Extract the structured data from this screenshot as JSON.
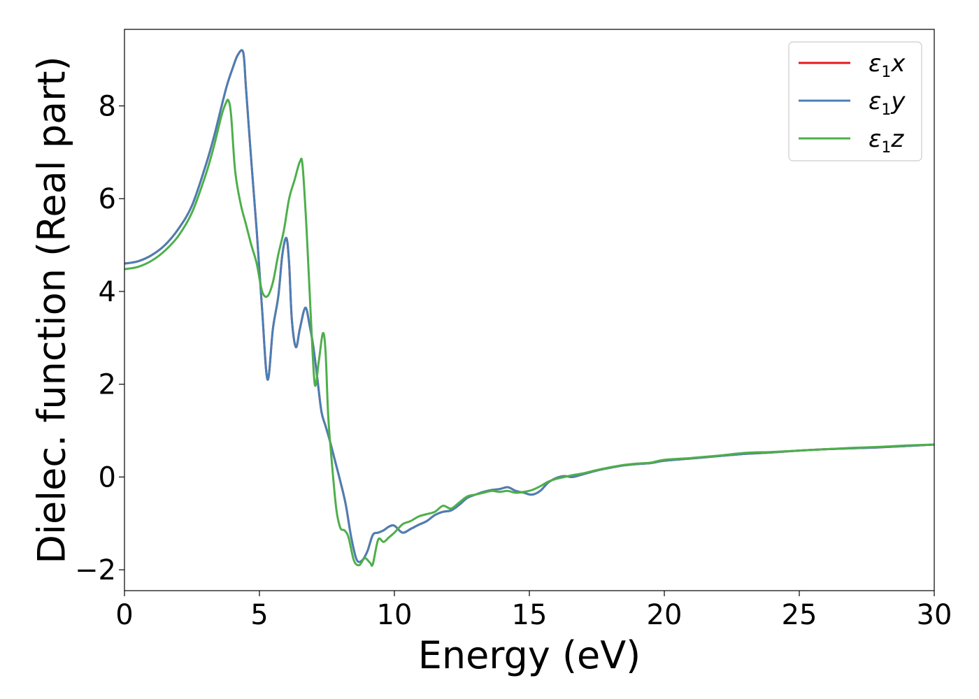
{
  "chart_data": {
    "type": "line",
    "xlabel": "Energy (eV)",
    "ylabel": "Dielec. function (Real part)",
    "xlim": [
      0,
      30
    ],
    "ylim": [
      -2.45,
      9.65
    ],
    "xticks": [
      0,
      5,
      10,
      15,
      20,
      25,
      30
    ],
    "xtick_labels": [
      "0",
      "5",
      "10",
      "15",
      "20",
      "25",
      "30"
    ],
    "yticks": [
      -2,
      0,
      2,
      4,
      6,
      8
    ],
    "ytick_labels": [
      "−2",
      "0",
      "2",
      "4",
      "6",
      "8"
    ],
    "grid": false,
    "legend_position": "top-right",
    "series": [
      {
        "name": "ε₁x",
        "legend_base": "ε",
        "legend_sub": "1",
        "legend_var": "x",
        "color": "#e41a1c",
        "x": [
          0,
          0.5,
          1,
          1.5,
          2,
          2.5,
          3,
          3.3,
          3.6,
          3.8,
          4.0,
          4.2,
          4.4,
          4.5,
          4.7,
          4.9,
          5.1,
          5.3,
          5.5,
          5.7,
          5.85,
          6.0,
          6.1,
          6.2,
          6.35,
          6.5,
          6.7,
          6.85,
          7.0,
          7.15,
          7.3,
          7.45,
          7.6,
          7.8,
          8.0,
          8.2,
          8.4,
          8.6,
          8.8,
          9.0,
          9.2,
          9.4,
          9.6,
          9.8,
          10.0,
          10.3,
          10.6,
          10.9,
          11.2,
          11.5,
          11.8,
          12.1,
          12.4,
          12.7,
          13.0,
          13.3,
          13.6,
          13.9,
          14.2,
          14.5,
          14.8,
          15.1,
          15.4,
          15.7,
          16.0,
          16.3,
          16.6,
          17.0,
          17.5,
          18.0,
          18.5,
          19.0,
          19.5,
          20.0,
          21.0,
          22.0,
          23.0,
          24.0,
          25.0,
          26.0,
          27.0,
          28.0,
          29.0,
          30.0
        ],
        "values": [
          4.6,
          4.65,
          4.78,
          5.0,
          5.35,
          5.85,
          6.7,
          7.3,
          8.0,
          8.45,
          8.8,
          9.1,
          9.15,
          8.4,
          6.8,
          5.3,
          3.6,
          2.1,
          3.2,
          3.9,
          4.8,
          5.15,
          4.6,
          3.4,
          2.8,
          3.2,
          3.65,
          3.3,
          2.8,
          2.1,
          1.4,
          1.1,
          0.8,
          0.35,
          -0.1,
          -0.6,
          -1.3,
          -1.78,
          -1.8,
          -1.6,
          -1.25,
          -1.2,
          -1.15,
          -1.07,
          -1.05,
          -1.2,
          -1.12,
          -1.03,
          -0.95,
          -0.82,
          -0.75,
          -0.72,
          -0.6,
          -0.45,
          -0.38,
          -0.32,
          -0.28,
          -0.26,
          -0.22,
          -0.3,
          -0.34,
          -0.38,
          -0.3,
          -0.12,
          -0.02,
          0.02,
          0.0,
          0.06,
          0.14,
          0.2,
          0.25,
          0.28,
          0.3,
          0.35,
          0.4,
          0.45,
          0.5,
          0.53,
          0.57,
          0.6,
          0.62,
          0.64,
          0.67,
          0.7
        ]
      },
      {
        "name": "ε₁y",
        "legend_base": "ε",
        "legend_sub": "1",
        "legend_var": "y",
        "color": "#4a7fb5",
        "x": [
          0,
          0.5,
          1,
          1.5,
          2,
          2.5,
          3,
          3.3,
          3.6,
          3.8,
          4.0,
          4.2,
          4.4,
          4.5,
          4.7,
          4.9,
          5.1,
          5.3,
          5.5,
          5.7,
          5.85,
          6.0,
          6.1,
          6.2,
          6.35,
          6.5,
          6.7,
          6.85,
          7.0,
          7.15,
          7.3,
          7.45,
          7.6,
          7.8,
          8.0,
          8.2,
          8.4,
          8.6,
          8.8,
          9.0,
          9.2,
          9.4,
          9.6,
          9.8,
          10.0,
          10.3,
          10.6,
          10.9,
          11.2,
          11.5,
          11.8,
          12.1,
          12.4,
          12.7,
          13.0,
          13.3,
          13.6,
          13.9,
          14.2,
          14.5,
          14.8,
          15.1,
          15.4,
          15.7,
          16.0,
          16.3,
          16.6,
          17.0,
          17.5,
          18.0,
          18.5,
          19.0,
          19.5,
          20.0,
          21.0,
          22.0,
          23.0,
          24.0,
          25.0,
          26.0,
          27.0,
          28.0,
          29.0,
          30.0
        ],
        "values": [
          4.6,
          4.65,
          4.78,
          5.0,
          5.35,
          5.85,
          6.7,
          7.3,
          8.0,
          8.45,
          8.8,
          9.1,
          9.15,
          8.4,
          6.8,
          5.3,
          3.6,
          2.1,
          3.2,
          3.9,
          4.8,
          5.15,
          4.6,
          3.4,
          2.8,
          3.2,
          3.65,
          3.3,
          2.8,
          2.1,
          1.4,
          1.1,
          0.8,
          0.35,
          -0.1,
          -0.6,
          -1.3,
          -1.78,
          -1.8,
          -1.6,
          -1.25,
          -1.2,
          -1.15,
          -1.07,
          -1.05,
          -1.2,
          -1.12,
          -1.03,
          -0.95,
          -0.82,
          -0.75,
          -0.72,
          -0.6,
          -0.45,
          -0.38,
          -0.32,
          -0.28,
          -0.26,
          -0.22,
          -0.3,
          -0.34,
          -0.38,
          -0.3,
          -0.12,
          -0.02,
          0.02,
          0.0,
          0.06,
          0.14,
          0.2,
          0.25,
          0.28,
          0.3,
          0.35,
          0.4,
          0.45,
          0.5,
          0.53,
          0.57,
          0.6,
          0.62,
          0.64,
          0.67,
          0.7
        ]
      },
      {
        "name": "ε₁z",
        "legend_base": "ε",
        "legend_sub": "1",
        "legend_var": "z",
        "color": "#4daf4a",
        "x": [
          0,
          0.5,
          1,
          1.5,
          2,
          2.5,
          3,
          3.3,
          3.6,
          3.75,
          3.85,
          3.95,
          4.1,
          4.3,
          4.5,
          4.7,
          4.9,
          5.1,
          5.3,
          5.5,
          5.7,
          5.9,
          6.1,
          6.3,
          6.5,
          6.6,
          6.75,
          6.9,
          7.05,
          7.2,
          7.35,
          7.45,
          7.55,
          7.7,
          7.85,
          8.0,
          8.15,
          8.3,
          8.5,
          8.7,
          8.9,
          9.1,
          9.2,
          9.4,
          9.6,
          9.8,
          10.0,
          10.3,
          10.6,
          10.9,
          11.2,
          11.5,
          11.8,
          12.1,
          12.4,
          12.7,
          13.0,
          13.3,
          13.6,
          13.9,
          14.2,
          14.5,
          14.8,
          15.1,
          15.4,
          15.7,
          16.0,
          16.3,
          16.6,
          17.0,
          17.5,
          18.0,
          18.5,
          19.0,
          19.5,
          20.0,
          21.0,
          22.0,
          23.0,
          24.0,
          25.0,
          26.0,
          27.0,
          28.0,
          29.0,
          30.0
        ],
        "values": [
          4.48,
          4.53,
          4.66,
          4.88,
          5.2,
          5.7,
          6.5,
          7.1,
          7.8,
          8.05,
          8.12,
          7.8,
          6.6,
          5.9,
          5.45,
          5.0,
          4.6,
          4.0,
          3.9,
          4.2,
          4.8,
          5.3,
          6.0,
          6.4,
          6.8,
          6.7,
          5.3,
          3.5,
          2.0,
          2.5,
          3.1,
          2.7,
          1.3,
          0.2,
          -0.7,
          -1.1,
          -1.15,
          -1.3,
          -1.8,
          -1.9,
          -1.75,
          -1.85,
          -1.88,
          -1.35,
          -1.4,
          -1.3,
          -1.2,
          -1.02,
          -0.95,
          -0.85,
          -0.8,
          -0.75,
          -0.62,
          -0.68,
          -0.55,
          -0.42,
          -0.38,
          -0.34,
          -0.3,
          -0.32,
          -0.3,
          -0.34,
          -0.32,
          -0.28,
          -0.2,
          -0.1,
          -0.04,
          0.0,
          0.04,
          0.08,
          0.15,
          0.21,
          0.26,
          0.29,
          0.31,
          0.37,
          0.41,
          0.46,
          0.52,
          0.54,
          0.57,
          0.6,
          0.63,
          0.65,
          0.68,
          0.7
        ]
      }
    ]
  }
}
